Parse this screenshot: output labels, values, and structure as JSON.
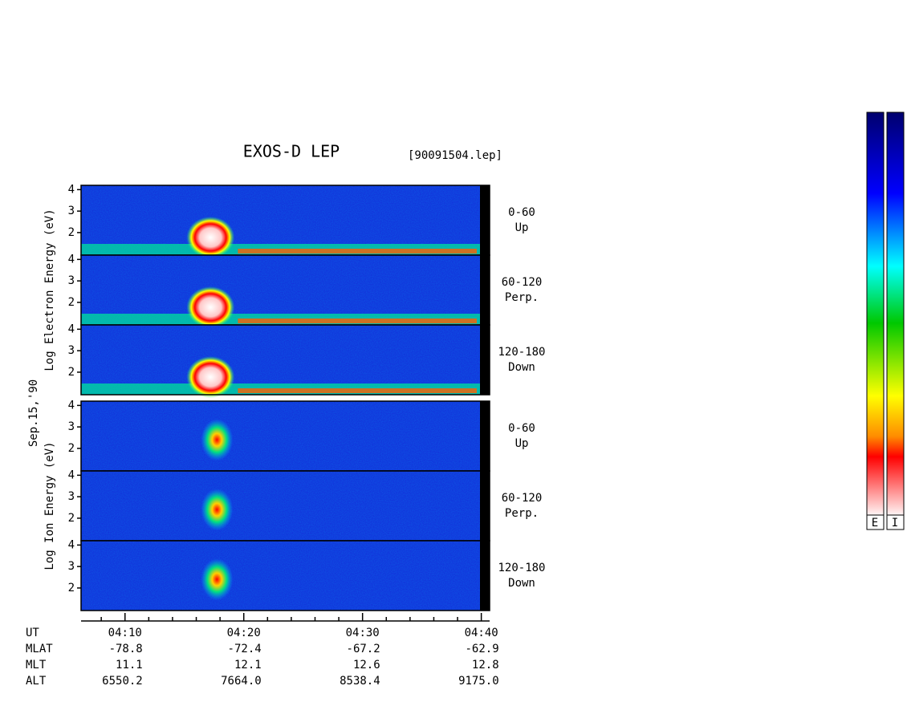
{
  "chart_data": {
    "type": "spectrogram",
    "title": "EXOS-D LEP",
    "file_label": "[90091504.lep]",
    "date_label": "Sep.15,'90",
    "groups": [
      {
        "ylabel": "Log Electron Energy (eV)",
        "panels": [
          {
            "range": "0-60",
            "direction": "Up"
          },
          {
            "range": "60-120",
            "direction": "Perp."
          },
          {
            "range": "120-180",
            "direction": "Down"
          }
        ]
      },
      {
        "ylabel": "Log Ion Energy (eV)",
        "panels": [
          {
            "range": "0-60",
            "direction": "Up"
          },
          {
            "range": "60-120",
            "direction": "Perp."
          },
          {
            "range": "120-180",
            "direction": "Down"
          }
        ]
      }
    ],
    "ylim": [
      0.95,
      4.2
    ],
    "yticks": [
      2,
      3,
      4
    ],
    "xlim": [
      246.3,
      280.7
    ],
    "xticks": [
      {
        "value": 250,
        "label": "04:10"
      },
      {
        "value": 260,
        "label": "04:20"
      },
      {
        "value": 270,
        "label": "04:30"
      },
      {
        "value": 280,
        "label": "04:40"
      }
    ],
    "xminor_ticks": [
      248,
      252,
      254,
      256,
      258,
      262,
      264,
      266,
      268,
      272,
      274,
      276,
      278
    ],
    "ephemeris": [
      {
        "name": "UT",
        "values": []
      },
      {
        "name": "MLAT",
        "values": [
          "-78.8",
          "-72.4",
          "-67.2",
          "-62.9"
        ]
      },
      {
        "name": "MLT",
        "values": [
          "11.1",
          "12.1",
          "12.6",
          "12.8"
        ]
      },
      {
        "name": "ALT",
        "values": [
          "6550.2",
          "7664.0",
          "8538.4",
          "9175.0"
        ]
      }
    ],
    "colorbar_labels": [
      "E",
      "I"
    ]
  }
}
